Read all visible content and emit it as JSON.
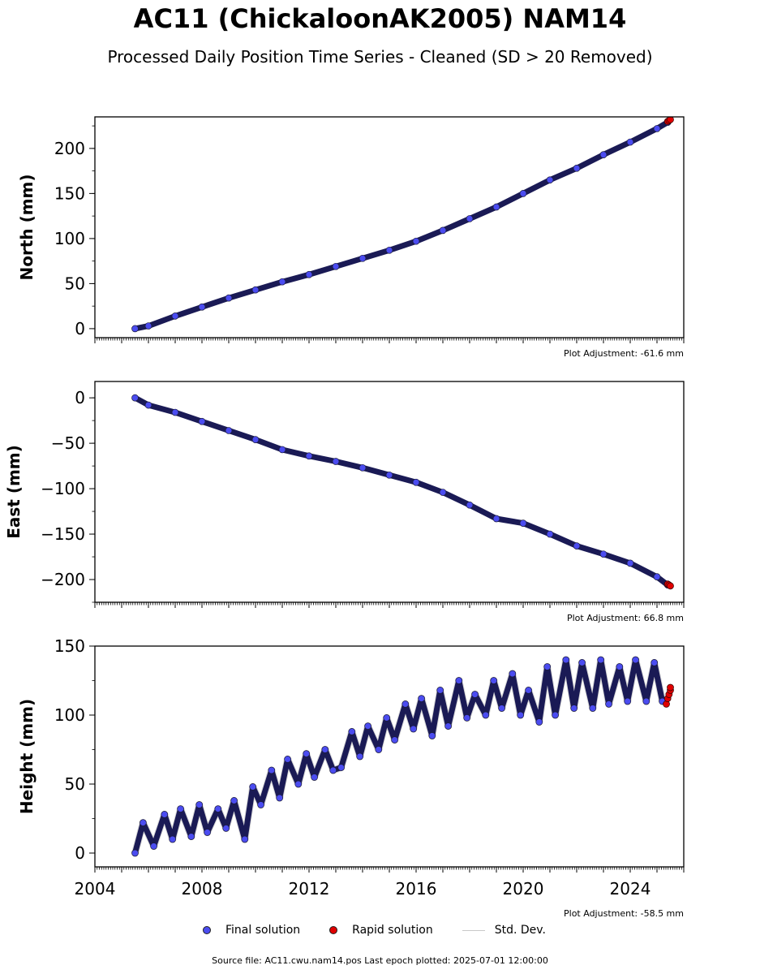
{
  "header": {
    "title": "AC11 (ChickaloonAK2005) NAM14",
    "subtitle": "Processed Daily Position Time Series - Cleaned (SD > 20 Removed)"
  },
  "legend": {
    "final_label": "Final solution",
    "rapid_label": "Rapid solution",
    "std_label": "Std. Dev."
  },
  "footer": {
    "text": "Source file: AC11.cwu.nam14.pos  Last epoch plotted: 2025-07-01 12:00:00"
  },
  "colors": {
    "final": "#4b4cf0",
    "rapid": "#e00000",
    "std": "#c8c8c8"
  },
  "chart_data": [
    {
      "type": "scatter",
      "ylabel": "North (mm)",
      "adjustment": "Plot Adjustment: -61.6 mm",
      "xlim": [
        2004.0,
        2026.0
      ],
      "ylim": [
        -10,
        235
      ],
      "yticks": [
        0,
        50,
        100,
        150,
        200
      ],
      "xtick_labels_shown": false,
      "series": [
        {
          "name": "Final solution",
          "x": [
            2005.5,
            2006.0,
            2007.0,
            2008.0,
            2009.0,
            2010.0,
            2011.0,
            2012.0,
            2013.0,
            2014.0,
            2015.0,
            2016.0,
            2017.0,
            2018.0,
            2019.0,
            2020.0,
            2021.0,
            2022.0,
            2023.0,
            2024.0,
            2025.0,
            2025.4
          ],
          "y": [
            0,
            3,
            14,
            24,
            34,
            43,
            52,
            60,
            69,
            78,
            87,
            97,
            109,
            122,
            135,
            150,
            165,
            178,
            193,
            207,
            222,
            229
          ]
        },
        {
          "name": "Rapid solution",
          "x": [
            2025.4,
            2025.45,
            2025.5
          ],
          "y": [
            230,
            231,
            232
          ]
        }
      ]
    },
    {
      "type": "scatter",
      "ylabel": "East (mm)",
      "adjustment": "Plot Adjustment: 66.8 mm",
      "xlim": [
        2004.0,
        2026.0
      ],
      "ylim": [
        -225,
        18
      ],
      "yticks": [
        0,
        -50,
        -100,
        -150,
        -200
      ],
      "xtick_labels_shown": false,
      "series": [
        {
          "name": "Final solution",
          "x": [
            2005.5,
            2006.0,
            2007.0,
            2008.0,
            2009.0,
            2010.0,
            2011.0,
            2012.0,
            2013.0,
            2014.0,
            2015.0,
            2016.0,
            2017.0,
            2018.0,
            2019.0,
            2020.0,
            2021.0,
            2022.0,
            2023.0,
            2024.0,
            2025.0,
            2025.4
          ],
          "y": [
            0,
            -8,
            -16,
            -26,
            -36,
            -46,
            -57,
            -64,
            -70,
            -77,
            -85,
            -93,
            -104,
            -118,
            -133,
            -138,
            -150,
            -163,
            -172,
            -182,
            -197,
            -206
          ]
        },
        {
          "name": "Rapid solution",
          "x": [
            2025.4,
            2025.45,
            2025.5
          ],
          "y": [
            -205,
            -206,
            -207
          ]
        }
      ]
    },
    {
      "type": "scatter",
      "ylabel": "Height (mm)",
      "adjustment": "Plot Adjustment: -58.5 mm",
      "xlim": [
        2004.0,
        2026.0
      ],
      "ylim": [
        -10,
        150
      ],
      "yticks": [
        0,
        50,
        100,
        150
      ],
      "xticks": [
        2004,
        2008,
        2012,
        2016,
        2020,
        2024
      ],
      "xtick_labels_shown": true,
      "series": [
        {
          "name": "Final solution",
          "x": [
            2005.5,
            2005.8,
            2006.2,
            2006.6,
            2006.9,
            2007.2,
            2007.6,
            2007.9,
            2008.2,
            2008.6,
            2008.9,
            2009.2,
            2009.6,
            2009.9,
            2010.2,
            2010.6,
            2010.9,
            2011.2,
            2011.6,
            2011.9,
            2012.2,
            2012.6,
            2012.9,
            2013.2,
            2013.6,
            2013.9,
            2014.2,
            2014.6,
            2014.9,
            2015.2,
            2015.6,
            2015.9,
            2016.2,
            2016.6,
            2016.9,
            2017.2,
            2017.6,
            2017.9,
            2018.2,
            2018.6,
            2018.9,
            2019.2,
            2019.6,
            2019.9,
            2020.2,
            2020.6,
            2020.9,
            2021.2,
            2021.6,
            2021.9,
            2022.2,
            2022.6,
            2022.9,
            2023.2,
            2023.6,
            2023.9,
            2024.2,
            2024.6,
            2024.9,
            2025.2
          ],
          "y": [
            0,
            22,
            5,
            28,
            10,
            32,
            12,
            35,
            15,
            32,
            18,
            38,
            10,
            48,
            35,
            60,
            40,
            68,
            50,
            72,
            55,
            75,
            60,
            62,
            88,
            70,
            92,
            75,
            98,
            82,
            108,
            90,
            112,
            85,
            118,
            92,
            125,
            98,
            115,
            100,
            125,
            105,
            130,
            100,
            118,
            95,
            135,
            100,
            140,
            105,
            138,
            105,
            140,
            108,
            135,
            110,
            140,
            110,
            138,
            110
          ]
        },
        {
          "name": "Rapid solution",
          "x": [
            2025.35,
            2025.4,
            2025.45,
            2025.5,
            2025.5
          ],
          "y": [
            108,
            112,
            115,
            118,
            120
          ]
        }
      ]
    }
  ]
}
